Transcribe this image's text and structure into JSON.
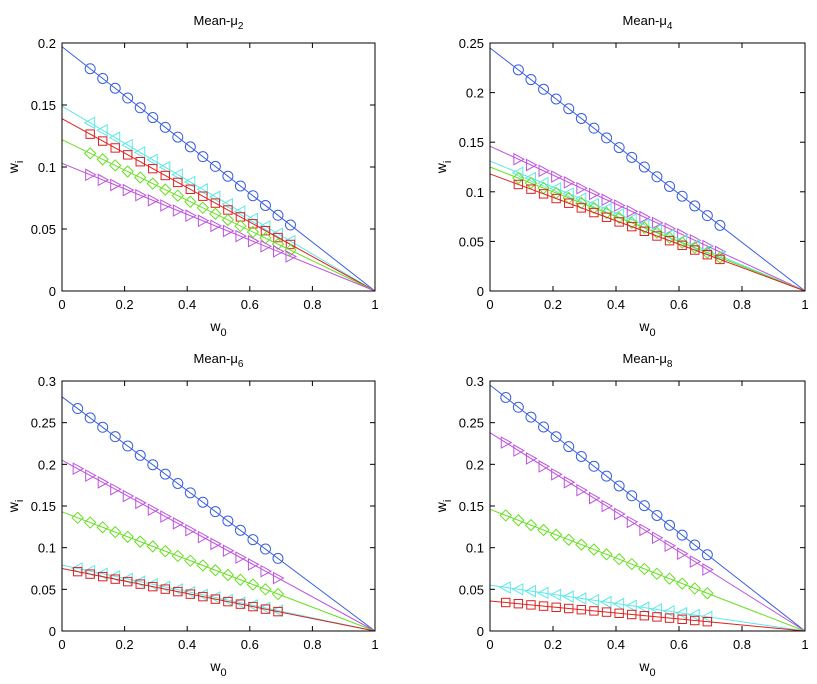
{
  "chart_data": [
    {
      "type": "line",
      "title": "Mean-",
      "title_symbol": "μ",
      "title_subscript": "2",
      "xlabel": "w",
      "xlabel_subscript": "0",
      "ylabel": "w",
      "ylabel_subscript": "i",
      "xlim": [
        0,
        1
      ],
      "ylim": [
        0,
        0.2
      ],
      "xticks": [
        "0",
        "0.2",
        "0.4",
        "0.6",
        "0.8",
        "1"
      ],
      "yticks": [
        "0",
        "0.05",
        "0.1",
        "0.15",
        "0.2"
      ],
      "series": [
        {
          "name": "circle",
          "color": "#3a5fe0",
          "marker": "circle",
          "y_at_0": 0.197,
          "marker_x": [
            0.09,
            0.13,
            0.17,
            0.21,
            0.25,
            0.29,
            0.33,
            0.37,
            0.41,
            0.45,
            0.49,
            0.53,
            0.57,
            0.61,
            0.65,
            0.69,
            0.73
          ]
        },
        {
          "name": "triangle-left",
          "color": "#5ce8e8",
          "marker": "triangle-left",
          "y_at_0": 0.149,
          "marker_x": [
            0.09,
            0.13,
            0.17,
            0.21,
            0.25,
            0.29,
            0.33,
            0.37,
            0.41,
            0.45,
            0.49,
            0.53,
            0.57,
            0.61,
            0.65,
            0.69,
            0.73
          ]
        },
        {
          "name": "square",
          "color": "#e02020",
          "marker": "square",
          "y_at_0": 0.139,
          "marker_x": [
            0.09,
            0.13,
            0.17,
            0.21,
            0.25,
            0.29,
            0.33,
            0.37,
            0.41,
            0.45,
            0.49,
            0.53,
            0.57,
            0.61,
            0.65,
            0.69,
            0.73
          ]
        },
        {
          "name": "diamond",
          "color": "#66e020",
          "marker": "diamond",
          "y_at_0": 0.122,
          "marker_x": [
            0.09,
            0.13,
            0.17,
            0.21,
            0.25,
            0.29,
            0.33,
            0.37,
            0.41,
            0.45,
            0.49,
            0.53,
            0.57,
            0.61,
            0.65,
            0.69,
            0.73
          ]
        },
        {
          "name": "triangle-right",
          "color": "#c050e0",
          "marker": "triangle-right",
          "y_at_0": 0.103,
          "marker_x": [
            0.09,
            0.13,
            0.17,
            0.21,
            0.25,
            0.29,
            0.33,
            0.37,
            0.41,
            0.45,
            0.49,
            0.53,
            0.57,
            0.61,
            0.65,
            0.69,
            0.73
          ]
        }
      ]
    },
    {
      "type": "line",
      "title": "Mean-",
      "title_symbol": "μ",
      "title_subscript": "4",
      "xlabel": "w",
      "xlabel_subscript": "0",
      "ylabel": "w",
      "ylabel_subscript": "i",
      "xlim": [
        0,
        1
      ],
      "ylim": [
        0,
        0.25
      ],
      "xticks": [
        "0",
        "0.2",
        "0.4",
        "0.6",
        "0.8",
        "1"
      ],
      "yticks": [
        "0",
        "0.05",
        "0.1",
        "0.15",
        "0.2",
        "0.25"
      ],
      "series": [
        {
          "name": "circle",
          "color": "#3a5fe0",
          "marker": "circle",
          "y_at_0": 0.245,
          "marker_x": [
            0.09,
            0.13,
            0.17,
            0.21,
            0.25,
            0.29,
            0.33,
            0.37,
            0.41,
            0.45,
            0.49,
            0.53,
            0.57,
            0.61,
            0.65,
            0.69,
            0.73
          ]
        },
        {
          "name": "triangle-right",
          "color": "#c050e0",
          "marker": "triangle-right",
          "y_at_0": 0.146,
          "marker_x": [
            0.09,
            0.13,
            0.17,
            0.21,
            0.25,
            0.29,
            0.33,
            0.37,
            0.41,
            0.45,
            0.49,
            0.53,
            0.57,
            0.61,
            0.65,
            0.69,
            0.73
          ]
        },
        {
          "name": "triangle-left",
          "color": "#5ce8e8",
          "marker": "triangle-left",
          "y_at_0": 0.131,
          "marker_x": [
            0.09,
            0.13,
            0.17,
            0.21,
            0.25,
            0.29,
            0.33,
            0.37,
            0.41,
            0.45,
            0.49,
            0.53,
            0.57,
            0.61,
            0.65,
            0.69,
            0.73
          ]
        },
        {
          "name": "diamond",
          "color": "#66e020",
          "marker": "diamond",
          "y_at_0": 0.125,
          "marker_x": [
            0.09,
            0.13,
            0.17,
            0.21,
            0.25,
            0.29,
            0.33,
            0.37,
            0.41,
            0.45,
            0.49,
            0.53,
            0.57,
            0.61,
            0.65,
            0.69,
            0.73
          ]
        },
        {
          "name": "square",
          "color": "#e02020",
          "marker": "square",
          "y_at_0": 0.118,
          "marker_x": [
            0.09,
            0.13,
            0.17,
            0.21,
            0.25,
            0.29,
            0.33,
            0.37,
            0.41,
            0.45,
            0.49,
            0.53,
            0.57,
            0.61,
            0.65,
            0.69,
            0.73
          ]
        }
      ]
    },
    {
      "type": "line",
      "title": "Mean-",
      "title_symbol": "μ",
      "title_subscript": "6",
      "xlabel": "w",
      "xlabel_subscript": "0",
      "ylabel": "w",
      "ylabel_subscript": "i",
      "xlim": [
        0,
        1
      ],
      "ylim": [
        0,
        0.3
      ],
      "xticks": [
        "0",
        "0.2",
        "0.4",
        "0.6",
        "0.8",
        "1"
      ],
      "yticks": [
        "0",
        "0.05",
        "0.1",
        "0.15",
        "0.2",
        "0.25",
        "0.3"
      ],
      "series": [
        {
          "name": "circle",
          "color": "#3a5fe0",
          "marker": "circle",
          "y_at_0": 0.281,
          "marker_x": [
            0.05,
            0.09,
            0.13,
            0.17,
            0.21,
            0.25,
            0.29,
            0.33,
            0.37,
            0.41,
            0.45,
            0.49,
            0.53,
            0.57,
            0.61,
            0.65,
            0.69
          ]
        },
        {
          "name": "triangle-right",
          "color": "#c050e0",
          "marker": "triangle-right",
          "y_at_0": 0.205,
          "marker_x": [
            0.05,
            0.09,
            0.13,
            0.17,
            0.21,
            0.25,
            0.29,
            0.33,
            0.37,
            0.41,
            0.45,
            0.49,
            0.53,
            0.57,
            0.61,
            0.65,
            0.69
          ]
        },
        {
          "name": "diamond",
          "color": "#66e020",
          "marker": "diamond",
          "y_at_0": 0.143,
          "marker_x": [
            0.05,
            0.09,
            0.13,
            0.17,
            0.21,
            0.25,
            0.29,
            0.33,
            0.37,
            0.41,
            0.45,
            0.49,
            0.53,
            0.57,
            0.61,
            0.65,
            0.69
          ]
        },
        {
          "name": "triangle-left",
          "color": "#5ce8e8",
          "marker": "triangle-left",
          "y_at_0": 0.079,
          "marker_x": [
            0.05,
            0.09,
            0.13,
            0.17,
            0.21,
            0.25,
            0.29,
            0.33,
            0.37,
            0.41,
            0.45,
            0.49,
            0.53,
            0.57,
            0.61,
            0.65,
            0.69
          ]
        },
        {
          "name": "square",
          "color": "#e02020",
          "marker": "square",
          "y_at_0": 0.075,
          "marker_x": [
            0.05,
            0.09,
            0.13,
            0.17,
            0.21,
            0.25,
            0.29,
            0.33,
            0.37,
            0.41,
            0.45,
            0.49,
            0.53,
            0.57,
            0.61,
            0.65,
            0.69
          ]
        }
      ]
    },
    {
      "type": "line",
      "title": "Mean-",
      "title_symbol": "μ",
      "title_subscript": "8",
      "xlabel": "w",
      "xlabel_subscript": "0",
      "ylabel": "w",
      "ylabel_subscript": "i",
      "xlim": [
        0,
        1
      ],
      "ylim": [
        0,
        0.3
      ],
      "xticks": [
        "0",
        "0.2",
        "0.4",
        "0.6",
        "0.8",
        "1"
      ],
      "yticks": [
        "0",
        "0.05",
        "0.1",
        "0.15",
        "0.2",
        "0.25",
        "0.3"
      ],
      "series": [
        {
          "name": "circle",
          "color": "#3a5fe0",
          "marker": "circle",
          "y_at_0": 0.295,
          "marker_x": [
            0.05,
            0.09,
            0.13,
            0.17,
            0.21,
            0.25,
            0.29,
            0.33,
            0.37,
            0.41,
            0.45,
            0.49,
            0.53,
            0.57,
            0.61,
            0.65,
            0.69
          ]
        },
        {
          "name": "triangle-right",
          "color": "#c050e0",
          "marker": "triangle-right",
          "y_at_0": 0.238,
          "marker_x": [
            0.05,
            0.09,
            0.13,
            0.17,
            0.21,
            0.25,
            0.29,
            0.33,
            0.37,
            0.41,
            0.45,
            0.49,
            0.53,
            0.57,
            0.61,
            0.65,
            0.69
          ]
        },
        {
          "name": "diamond",
          "color": "#66e020",
          "marker": "diamond",
          "y_at_0": 0.146,
          "marker_x": [
            0.05,
            0.09,
            0.13,
            0.17,
            0.21,
            0.25,
            0.29,
            0.33,
            0.37,
            0.41,
            0.45,
            0.49,
            0.53,
            0.57,
            0.61,
            0.65,
            0.69
          ]
        },
        {
          "name": "triangle-left",
          "color": "#5ce8e8",
          "marker": "triangle-left",
          "y_at_0": 0.055,
          "marker_x": [
            0.05,
            0.09,
            0.13,
            0.17,
            0.21,
            0.25,
            0.29,
            0.33,
            0.37,
            0.41,
            0.45,
            0.49,
            0.53,
            0.57,
            0.61,
            0.65,
            0.69
          ]
        },
        {
          "name": "square",
          "color": "#e02020",
          "marker": "square",
          "y_at_0": 0.036,
          "marker_x": [
            0.05,
            0.09,
            0.13,
            0.17,
            0.21,
            0.25,
            0.29,
            0.33,
            0.37,
            0.41,
            0.45,
            0.49,
            0.53,
            0.57,
            0.61,
            0.65,
            0.69
          ]
        }
      ]
    }
  ]
}
